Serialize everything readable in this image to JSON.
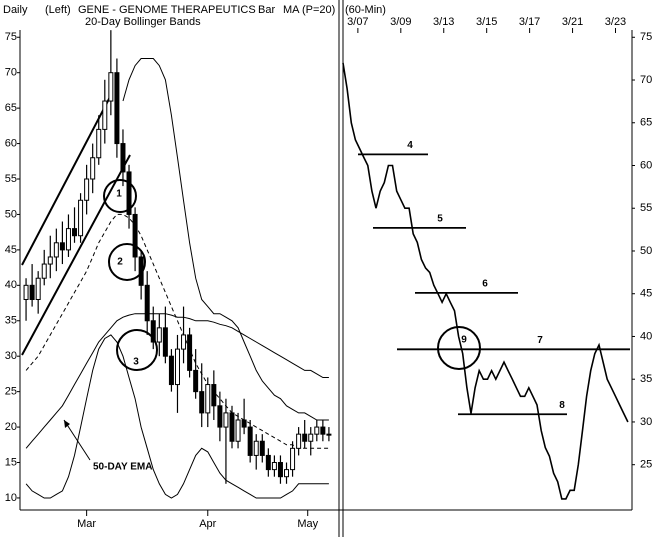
{
  "chart_data": [
    {
      "type": "candlestick",
      "title": "GENE - GENOME THERAPEUTICS",
      "period": "Daily",
      "scale_side": "(Left)",
      "bar_style": "Bar",
      "ma": "MA (P=20)",
      "subtitle": "20-Day Bollinger Bands",
      "xlim": [
        -1,
        51.5
      ],
      "xticks": [
        {
          "value": 10,
          "label": "Mar"
        },
        {
          "value": 30,
          "label": "Apr"
        },
        {
          "value": 46.5,
          "label": "May"
        }
      ],
      "ylim": [
        8.3,
        75.6
      ],
      "yticks": [
        10,
        15,
        20,
        25,
        30,
        35,
        40,
        45,
        50,
        55,
        60,
        65,
        70,
        75
      ],
      "open": [
        38,
        40,
        38,
        41,
        43,
        44,
        46,
        45,
        48,
        47,
        52,
        55,
        58,
        62,
        66,
        70,
        60,
        56,
        50,
        44,
        40,
        35,
        32,
        34,
        30,
        26,
        31,
        33,
        28,
        25,
        22,
        26,
        23,
        20,
        22,
        18,
        21,
        20,
        16,
        18,
        16,
        14,
        15,
        13,
        14,
        17,
        19,
        18,
        19,
        20,
        19
      ],
      "high": [
        41,
        43,
        42,
        45,
        47,
        48,
        49,
        50,
        51,
        53,
        57,
        60,
        64,
        69,
        76,
        72,
        62,
        57,
        51,
        45,
        42,
        37,
        36,
        37,
        31,
        33,
        37,
        34,
        31,
        29,
        27,
        28,
        25,
        24,
        23,
        22,
        24,
        21,
        19,
        19,
        17,
        16,
        16,
        15,
        18,
        20,
        21,
        20,
        21,
        21,
        20
      ],
      "low": [
        35,
        37,
        36,
        40,
        41,
        42,
        43,
        44,
        46,
        46,
        50,
        53,
        57,
        60,
        64,
        58,
        54,
        48,
        42,
        38,
        33,
        31,
        30,
        29,
        25,
        22,
        29,
        27,
        24,
        20,
        20,
        21,
        18,
        12,
        17,
        17,
        19,
        15,
        14,
        15,
        13,
        13,
        12,
        12,
        13,
        16,
        17,
        16,
        18,
        18,
        18
      ],
      "close": [
        40,
        38,
        41,
        43,
        44,
        46,
        45,
        48,
        47,
        52,
        55,
        58,
        62,
        66,
        70,
        60,
        56,
        50,
        44,
        40,
        35,
        32,
        34,
        30,
        26,
        31,
        33,
        28,
        25,
        22,
        26,
        23,
        20,
        22,
        18,
        21,
        20,
        16,
        18,
        16,
        14,
        15,
        13,
        14,
        17,
        19,
        18,
        19,
        20,
        19,
        19
      ],
      "overlays": [
        {
          "dash": false,
          "values": [
            null,
            null,
            null,
            null,
            null,
            null,
            null,
            null,
            null,
            null,
            null,
            null,
            null,
            null,
            null,
            null,
            66,
            69,
            71,
            72,
            72,
            72,
            71,
            69,
            64,
            58,
            52,
            46,
            41,
            38,
            37,
            36,
            36,
            35.5,
            35,
            34,
            32,
            30,
            28,
            26.5,
            25.5,
            24.5,
            24,
            23,
            22.5,
            22,
            22,
            21.5,
            21,
            21,
            21
          ]
        },
        {
          "dash": true,
          "values": [
            28,
            29,
            30,
            31.5,
            33,
            34.5,
            36,
            37.5,
            39,
            40.5,
            42,
            44,
            46,
            47.5,
            49,
            50,
            50,
            49.5,
            48.5,
            47,
            45,
            43,
            41,
            39,
            37,
            35,
            33,
            31,
            29,
            27.5,
            26,
            25,
            24,
            23,
            22,
            21.5,
            21,
            20.5,
            20,
            19.5,
            19,
            18.5,
            18,
            17.5,
            17.5,
            17,
            17,
            17,
            17,
            17,
            17
          ]
        },
        {
          "dash": false,
          "values": [
            12,
            11,
            10.5,
            10,
            10,
            10.5,
            11,
            13,
            16,
            20,
            24,
            28,
            31,
            32.5,
            33,
            32,
            30,
            27,
            24,
            20,
            17,
            14,
            12,
            10.5,
            10,
            10.5,
            12,
            14,
            16,
            17,
            16.5,
            15,
            13.5,
            12.5,
            12,
            11.5,
            11,
            10.5,
            10,
            10,
            10,
            10,
            10,
            10.5,
            11,
            12,
            12,
            12,
            12,
            12,
            12
          ]
        },
        {
          "dash": false,
          "name": "50-DAY EMA",
          "values": [
            17,
            18,
            19,
            20,
            21,
            22,
            23,
            24.5,
            26,
            27.5,
            29,
            30.5,
            32,
            33,
            34,
            35,
            35.5,
            35.8,
            36,
            36,
            36,
            36,
            36,
            36,
            35.8,
            35.5,
            35.5,
            35.3,
            35,
            35,
            35,
            34.8,
            34.5,
            34.3,
            34,
            33.5,
            33,
            32.5,
            32,
            31.5,
            31,
            30.5,
            30,
            29.5,
            29,
            28.5,
            28,
            28,
            27.5,
            27,
            27
          ]
        }
      ],
      "annotations": [
        "1",
        "2",
        "3"
      ]
    },
    {
      "type": "line",
      "period": "(60-Min)",
      "xlim": [
        0,
        70
      ],
      "xticks": [
        {
          "value": 3.6,
          "label": "3/07"
        },
        {
          "value": 14,
          "label": "3/09"
        },
        {
          "value": 24.4,
          "label": "3/13"
        },
        {
          "value": 34.8,
          "label": "3/15"
        },
        {
          "value": 45.2,
          "label": "3/17"
        },
        {
          "value": 55.6,
          "label": "3/21"
        },
        {
          "value": 66,
          "label": "3/23"
        }
      ],
      "ylim": [
        19.7,
        75.5
      ],
      "yticks": [
        25,
        30,
        35,
        40,
        45,
        50,
        55,
        60,
        65,
        70,
        75
      ],
      "color": "#000000",
      "values": [
        72,
        69,
        65,
        63,
        62,
        61,
        60,
        57,
        55,
        57,
        58,
        60,
        60,
        57,
        56,
        55,
        55,
        52,
        51,
        49,
        48,
        47.5,
        46,
        45,
        44,
        45,
        44,
        43,
        40,
        38,
        34,
        31,
        34,
        36,
        35,
        35,
        36,
        35,
        36,
        37,
        36,
        35,
        34,
        33,
        33,
        34,
        33,
        32,
        29,
        27,
        26,
        24,
        23,
        21,
        21,
        22,
        22,
        25,
        29,
        33,
        36,
        38,
        39,
        37,
        35,
        34,
        33,
        32,
        31,
        30
      ],
      "levels": [
        {
          "label": "4",
          "value": 61.3
        },
        {
          "label": "5",
          "value": 52.7
        },
        {
          "label": "6",
          "value": 45.1
        },
        {
          "label": "7",
          "value": 38.5
        },
        {
          "label": "8",
          "value": 30.9
        }
      ],
      "annotations": [
        "9"
      ]
    }
  ]
}
